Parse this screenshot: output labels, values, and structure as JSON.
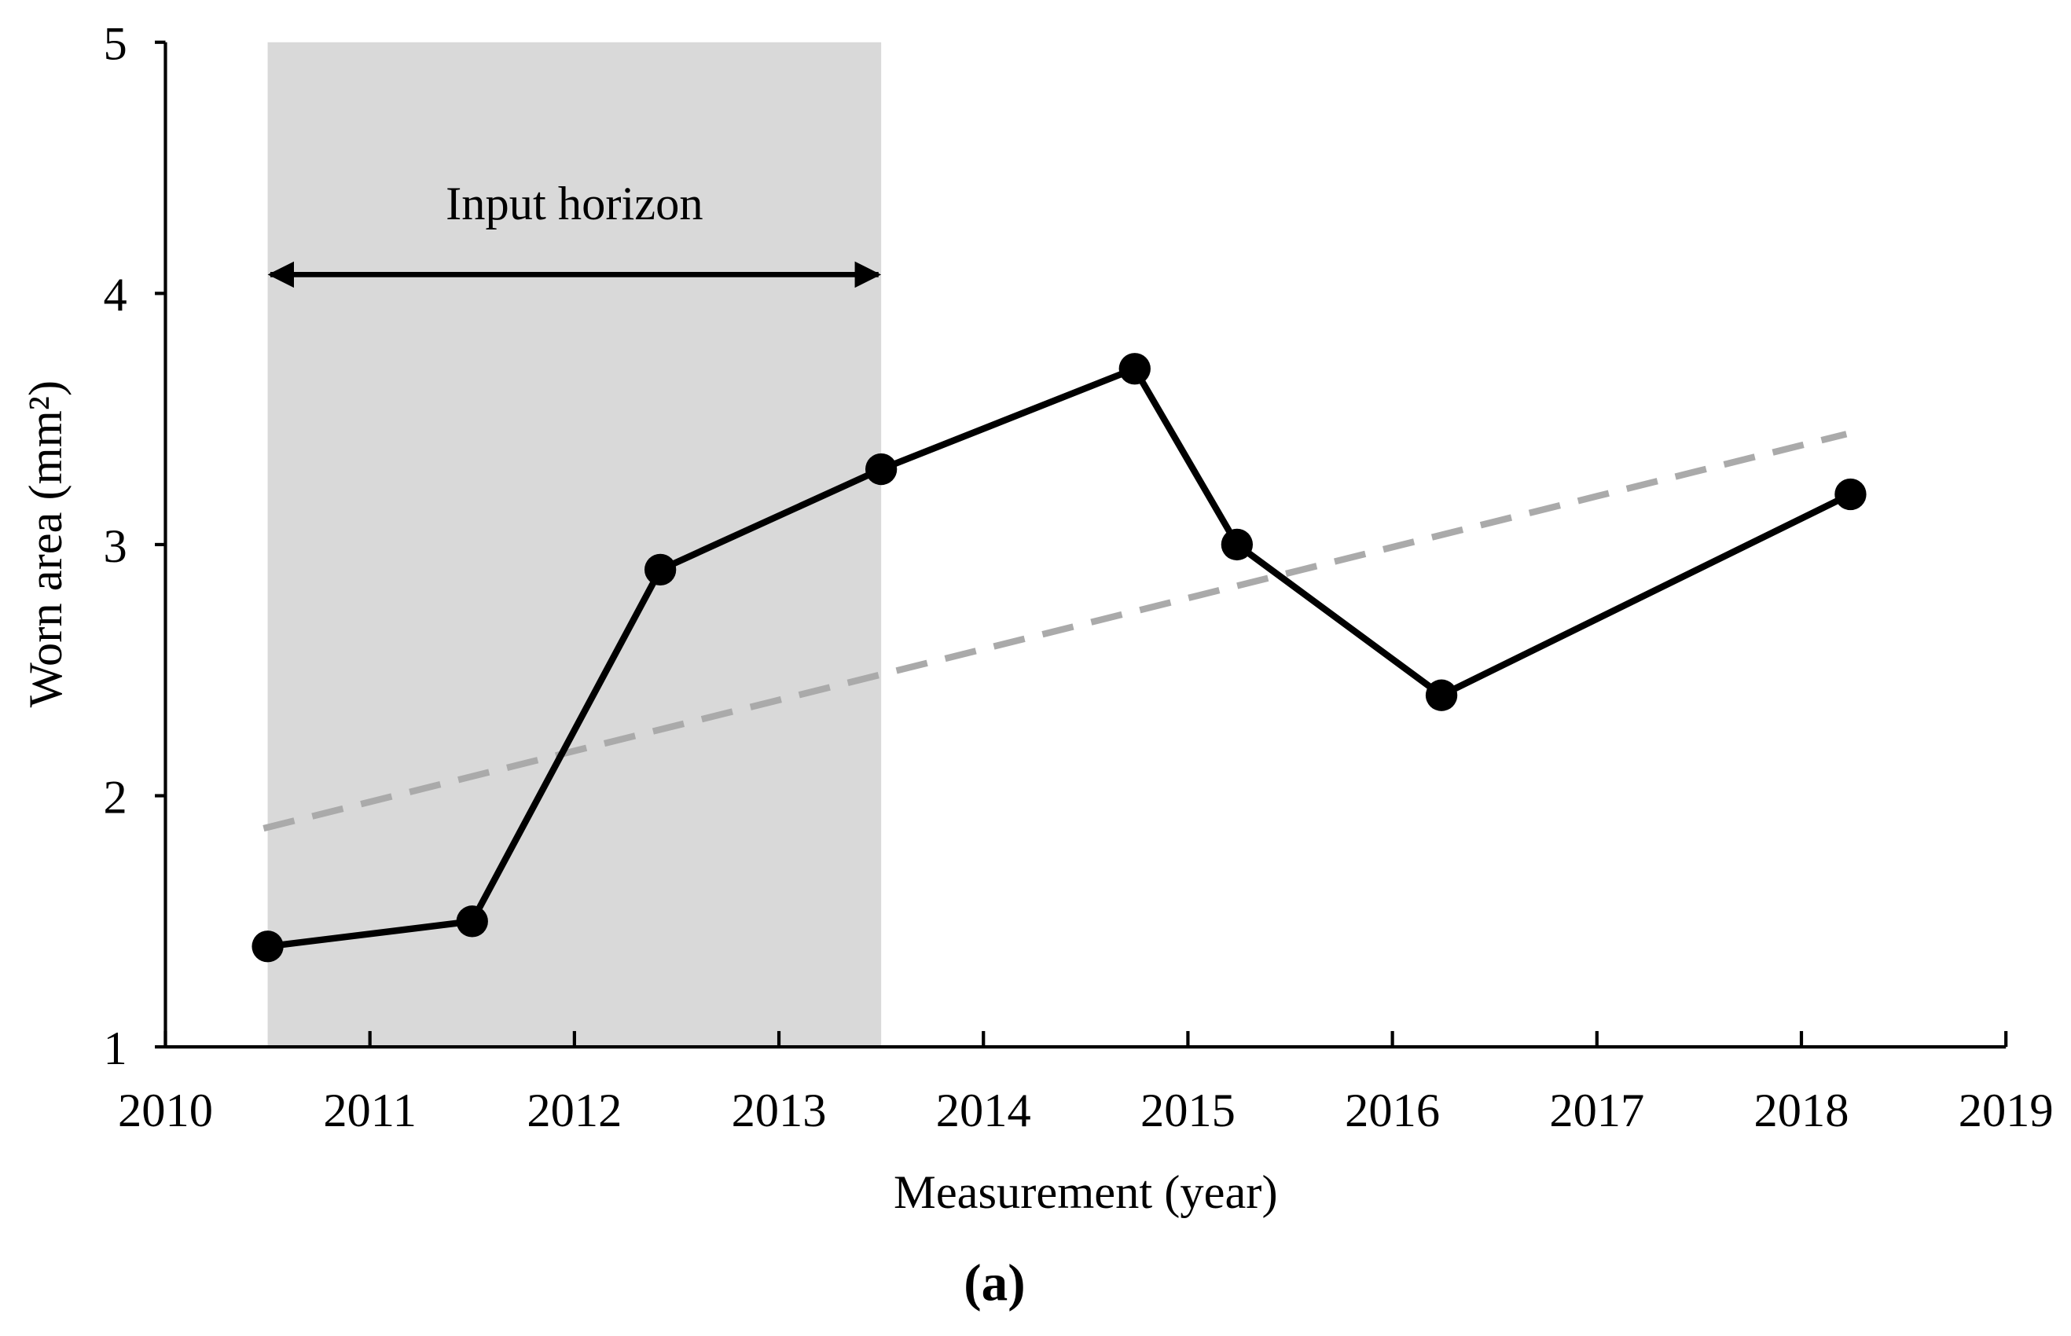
{
  "chart_data": {
    "type": "line",
    "x_label": "Measurement (year)",
    "y_label": "Worn area (mm²)",
    "caption": "(a)",
    "annotation": "Input horizon",
    "shaded_range": [
      2010.5,
      2013.5
    ],
    "shade_color": "#d9d9d9",
    "x": [
      2010.5,
      2011.5,
      2012.42,
      2013.5,
      2014.74,
      2015.24,
      2016.24,
      2018.24
    ],
    "series": [
      {
        "color": "#000000",
        "values": [
          1.4,
          1.5,
          2.9,
          3.3,
          3.7,
          3.0,
          2.4,
          3.2
        ]
      }
    ],
    "trend": {
      "x": [
        2010.48,
        2018.22
      ],
      "values": [
        1.87,
        3.44
      ],
      "color": "#aaaaaa"
    },
    "xlim": [
      2010,
      2019
    ],
    "xticks": [
      2010,
      2011,
      2012,
      2013,
      2014,
      2015,
      2016,
      2017,
      2018,
      2019
    ],
    "ylim": [
      1,
      5
    ],
    "yticks": [
      1,
      2,
      3,
      4,
      5
    ]
  }
}
